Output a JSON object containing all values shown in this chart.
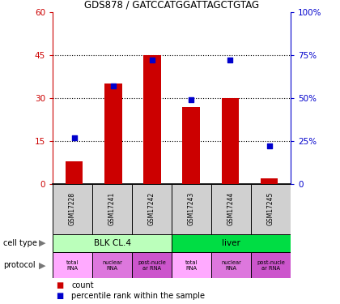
{
  "title": "GDS878 / GATCCATGGATTAGCTGTAG",
  "samples": [
    "GSM17228",
    "GSM17241",
    "GSM17242",
    "GSM17243",
    "GSM17244",
    "GSM17245"
  ],
  "counts": [
    8,
    35,
    45,
    27,
    30,
    2
  ],
  "percentiles": [
    27,
    57,
    72,
    49,
    72,
    22
  ],
  "left_ylim": [
    0,
    60
  ],
  "right_ylim": [
    0,
    100
  ],
  "left_yticks": [
    0,
    15,
    30,
    45,
    60
  ],
  "right_yticks": [
    0,
    25,
    50,
    75,
    100
  ],
  "left_yticklabels": [
    "0",
    "15",
    "30",
    "45",
    "60"
  ],
  "right_yticklabels": [
    "0",
    "25%",
    "50%",
    "75%",
    "100%"
  ],
  "bar_color": "#cc0000",
  "dot_color": "#0000cc",
  "cell_type_colors": {
    "BLK CL.4": "#bbffbb",
    "liver": "#00dd44"
  },
  "protocol_colors_list": [
    "#ffaaff",
    "#dd77dd",
    "#cc55cc",
    "#ffaaff",
    "#dd77dd",
    "#cc55cc"
  ],
  "bg_color": "#ffffff",
  "tick_color_left": "#cc0000",
  "tick_color_right": "#0000cc",
  "dotted_lines": [
    15,
    30,
    45
  ],
  "proto_labels": [
    "total\nRNA",
    "nuclear\nRNA",
    "post-nucle\nar RNA",
    "total\nRNA",
    "nuclear\nRNA",
    "post-nucle\nar RNA"
  ]
}
